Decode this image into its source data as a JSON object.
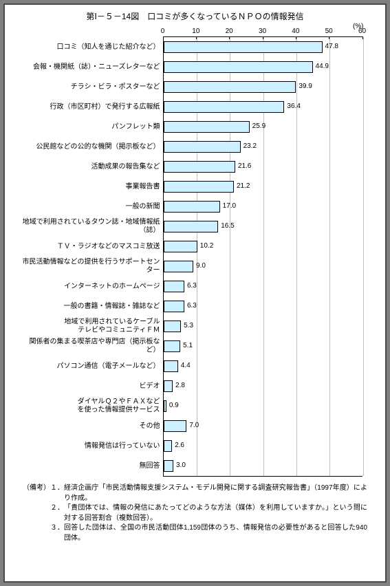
{
  "title": "第Ⅰ－５－14図　口コミが多くなっているＮＰＯの情報発信",
  "unit": "(%)",
  "xmax": 60,
  "xtick_step": 10,
  "bar_color": "#ccf0ff",
  "bar_border": "#000000",
  "grid_color": "#c0c0c0",
  "background": "#ffffff",
  "frame_border": "#4a4a4a",
  "font_size_title": 12,
  "font_size_label": 10,
  "categories": [
    {
      "label": "口コミ（知人を通じた紹介など）",
      "value": 47.8
    },
    {
      "label": "会報・機関紙（誌）・ニューズレターなど",
      "value": 44.9
    },
    {
      "label": "チラシ・ビラ・ポスターなど",
      "value": 39.9
    },
    {
      "label": "行政（市区町村）で発行する広報紙",
      "value": 36.4
    },
    {
      "label": "パンフレット類",
      "value": 25.9
    },
    {
      "label": "公民館などの公的な機関（掲示板など）",
      "value": 23.2
    },
    {
      "label": "活動成果の報告集など",
      "value": 21.6
    },
    {
      "label": "事業報告書",
      "value": 21.2
    },
    {
      "label": "一般の新聞",
      "value": 17.0
    },
    {
      "label": "地域で利用されているタウン誌・地域情報紙（誌）",
      "value": 16.5
    },
    {
      "label": "ＴＶ・ラジオなどのマスコミ放送",
      "value": 10.2
    },
    {
      "label": "市民活動情報などの提供を行うサポートセンター",
      "value": 9.0
    },
    {
      "label": "インターネットのホームページ",
      "value": 6.3
    },
    {
      "label": "一般の書籍・情報誌・雑誌など",
      "value": 6.3
    },
    {
      "label": "地域で利用されているケーブル\nテレビやコミュニティＦＭ",
      "value": 5.3
    },
    {
      "label": "関係者の集まる喫茶店や専門店（掲示板など）",
      "value": 5.1
    },
    {
      "label": "パソコン通信（電子メールなど）",
      "value": 4.4
    },
    {
      "label": "ビデオ",
      "value": 2.8
    },
    {
      "label": "ダイヤルＱ２やＦＡＸなど\nを使った情報提供サービス",
      "value": 0.9
    },
    {
      "label": "その他",
      "value": 7.0
    },
    {
      "label": "情報発信は行っていない",
      "value": 2.6
    },
    {
      "label": "無回答",
      "value": 3.0
    }
  ],
  "notes_head": "（備考）",
  "notes": [
    {
      "n": "１．",
      "t": "経済企画庁「市民活動情報支援システム・モデル開発に関する調査研究報告書」（1997年度）により作成。"
    },
    {
      "n": "２．",
      "t": "「貴団体では、情報の発信にあたってどのような方法（媒体）を利用していますか。」という問に対する回答割合（複数回答）。"
    },
    {
      "n": "３．",
      "t": "回答した団体は、全国の市民活動団体1,159団体のうち、情報発信の必要性があると回答した940団体。"
    }
  ]
}
